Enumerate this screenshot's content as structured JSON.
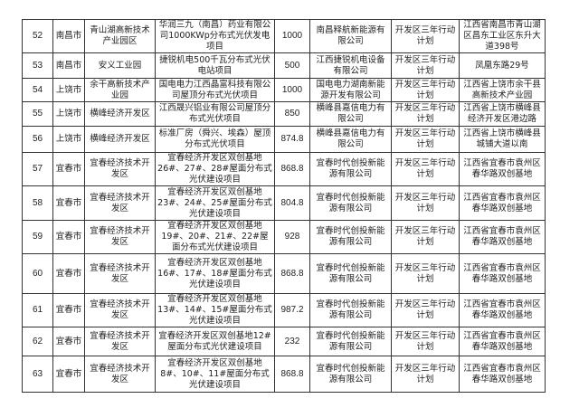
{
  "rows": [
    {
      "no": "52",
      "city": "南昌市",
      "park": "青山湖高新技术产业园区",
      "project": "华润三九（南昌）药业有限公司1000KWp分布式光伏发电项目",
      "capacity": "1000",
      "company": "南昌释航新能源有限公司",
      "category": "开发区三年行动计划",
      "address": "江西省南昌市青山湖区昌东工业区东升大道398号"
    },
    {
      "no": "53",
      "city": "南昌市",
      "park": "安义工业园",
      "project": "捷锐机电500千瓦分布式光伏电站项目",
      "capacity": "500",
      "company": "江西捷锐机电设备有限公司",
      "category": "开发区三年行动计划",
      "address": "凤凰东路29号"
    },
    {
      "no": "54",
      "city": "上饶市",
      "park": "余干高新技术产业园",
      "project": "国电电力江西晶富科技有限公司屋顶分布式光伏项目",
      "capacity": "1000",
      "company": "国电电力湖南新能源开发有限公司",
      "category": "开发区三年行动计划",
      "address": "江西省上饶市余干县高新技术产业园"
    },
    {
      "no": "55",
      "city": "上饶市",
      "park": "横峰经济开发区",
      "project": "江西晟兴铝业有限公司屋顶分布式光伏项目",
      "capacity": "850",
      "company": "横峰县嘉信电力有限公司",
      "category": "开发区三年行动计划",
      "address": "江西省上饶市横峰县经济开发区港边路"
    },
    {
      "no": "56",
      "city": "上饶市",
      "park": "横峰经济开发区",
      "project": "标准厂房（舜兴、埃森）屋顶分布式光伏项目",
      "capacity": "874.8",
      "company": "横峰县嘉信电力有限公司",
      "category": "开发区三年行动计划",
      "address": "江西省上饶市横峰县城铺大道以南"
    },
    {
      "no": "57",
      "city": "宜春市",
      "park": "宜春经济技术开发区",
      "project": "宜春经济开发区双创基地26#、27#、28#屋面分布式光伏建设项目",
      "capacity": "868.8",
      "company": "宜春时代创投新能源有限公司",
      "category": "开发区三年行动计划",
      "address": "江西省宜春市袁州区春华路双创基地"
    },
    {
      "no": "58",
      "city": "宜春市",
      "park": "宜春经济技术开发区",
      "project": "宜春经济开发区双创基地23#、24#、25#屋面分布式光伏建设项目",
      "capacity": "804.8",
      "company": "宜春时代创投新能源有限公司",
      "category": "开发区三年行动计划",
      "address": "江西省宜春市袁州区春华路双创基地"
    },
    {
      "no": "59",
      "city": "宜春市",
      "park": "宜春经济技术开发区",
      "project": "宜春经济开发区双创基地19#、20#、21#、22#屋面分布式光伏建设项目",
      "capacity": "928",
      "company": "宜春时代创投新能源有限公司",
      "category": "开发区三年行动计划",
      "address": "江西省宜春市袁州区春华路双创基地"
    },
    {
      "no": "60",
      "city": "宜春市",
      "park": "宜春经济技术开发区",
      "project": "宜春经济开发区双创基地16#、17#、18#屋面分布式光伏建设项目",
      "capacity": "868.8",
      "company": "宜春时代创投新能源有限公司",
      "category": "开发区三年行动计划",
      "address": "江西省宜春市袁州区春华路双创基地"
    },
    {
      "no": "61",
      "city": "宜春市",
      "park": "宜春经济技术开发区",
      "project": "宜春经济开发区双创基地13#、14#、15#屋面分布式光伏建设项目",
      "capacity": "987.2",
      "company": "宜春时代创投新能源有限公司",
      "category": "开发区三年行动计划",
      "address": "江西省宜春市袁州区春华路双创基地"
    },
    {
      "no": "62",
      "city": "宜春市",
      "park": "宜春经济技术开发区",
      "project": "宜春经济开发区双创基地12#屋面分布式光伏建设项目",
      "capacity": "232",
      "company": "宜春时代创投新能源有限公司",
      "category": "开发区三年行动计划",
      "address": "江西省宜春市袁州区春华路双创基地"
    },
    {
      "no": "63",
      "city": "宜春市",
      "park": "宜春经济技术开发区",
      "project": "宜春经济开发区双创基地8#、10#、11#屋面分布式光伏建设项目",
      "capacity": "868.8",
      "company": "宜春时代创投新能源有限公司",
      "category": "开发区三年行动计划",
      "address": "江西省宜春市袁州区春华路双创基地"
    }
  ]
}
